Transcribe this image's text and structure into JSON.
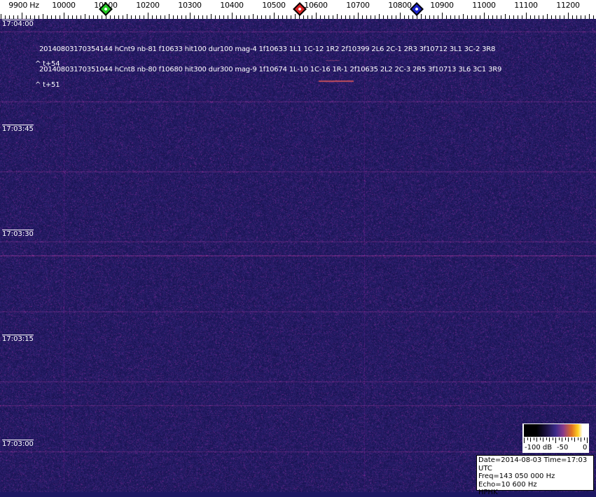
{
  "frequency_axis": {
    "labels": [
      "9900 Hz",
      "10000",
      "10100",
      "10200",
      "10300",
      "10400",
      "10500",
      "10600",
      "10700",
      "10800",
      "10900",
      "11000",
      "11100",
      "11200"
    ]
  },
  "markers": [
    {
      "name": "green",
      "color": "#22cc22",
      "freq": 10100
    },
    {
      "name": "red",
      "color": "#dd2222",
      "freq": 10562
    },
    {
      "name": "blue",
      "color": "#1a22cc",
      "freq": 10840
    }
  ],
  "time_labels": [
    "17:04:00",
    "17:03:45",
    "17:03:30",
    "17:03:15",
    "17:03:00"
  ],
  "detections": [
    {
      "text": "20140803170354144 hCnt9 nb-81 f10633 hit100 dur100 mag-4 1f10633 1L1 1C-12 1R2 2f10399 2L6 2C-1 2R3 3f10712 3L1 3C-2 3R8",
      "offset": "^ t+54"
    },
    {
      "text": "20140803170351044 hCnt8 nb-80 f10680 hit300 dur300 mag-9 1f10674 1L-10 1C-16 1R-1 2f10635 2L2 2C-3 2R5 3f10713 3L6 3C1 3R9",
      "offset": "^ t+51"
    }
  ],
  "color_scale": {
    "labels": [
      "-100 dB",
      "-50",
      "0"
    ]
  },
  "info": {
    "date_time": "Date=2014-08-03 Time=17:03 UTC",
    "freq": "Freq=143 050 000 Hz",
    "echo": "Echo=10 600 Hz",
    "station": "HPHK"
  }
}
